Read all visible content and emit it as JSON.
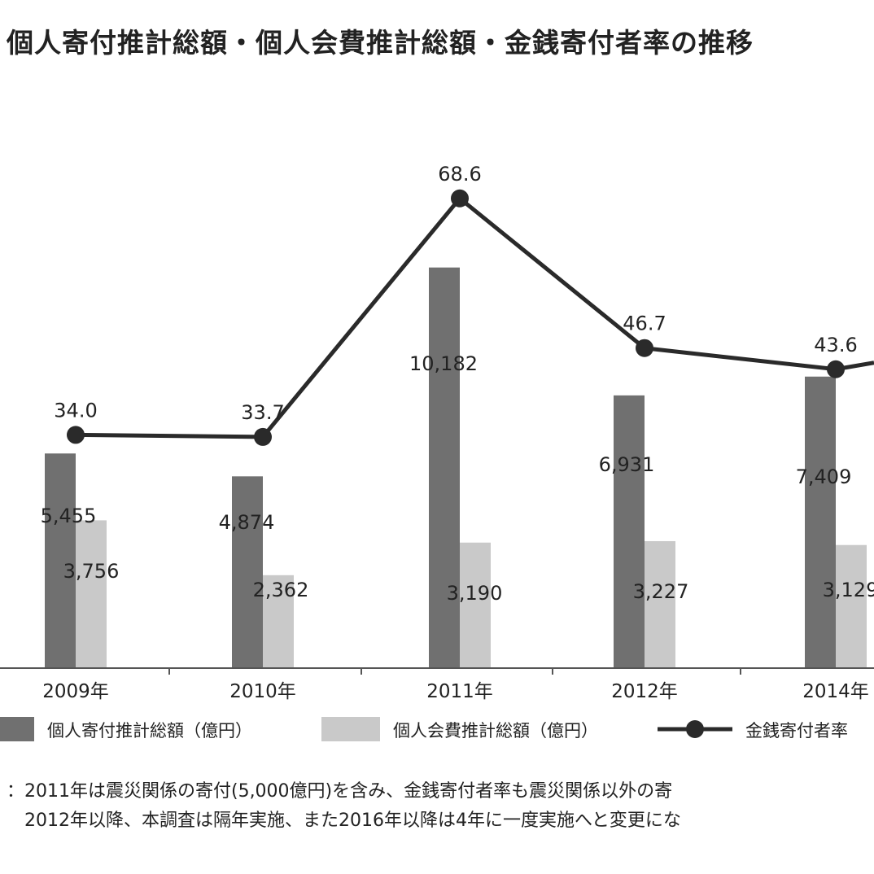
{
  "chart_data": {
    "type": "bar",
    "title": "個人寄付推計総額・個人会費推計総額・金銭寄付者率の推移",
    "categories": [
      "2009年",
      "2010年",
      "2011年",
      "2012年",
      "2014年"
    ],
    "series": [
      {
        "name": "個人寄付推計総額（億円）",
        "kind": "bar",
        "color": "#707070",
        "values": [
          5455,
          4874,
          10182,
          6931,
          7409
        ],
        "labels": [
          "5,455",
          "4,874",
          "10,182",
          "6,931",
          "7,409"
        ]
      },
      {
        "name": "個人会費推計総額（億円）",
        "kind": "bar",
        "color": "#c9c9c9",
        "values": [
          3756,
          2362,
          3190,
          3227,
          3129
        ],
        "labels": [
          "3,756",
          "2,362",
          "3,190",
          "3,227",
          "3,129"
        ]
      },
      {
        "name": "金銭寄付者率",
        "kind": "line",
        "color": "#2a2a2a",
        "values": [
          34.0,
          33.7,
          68.6,
          46.7,
          43.6
        ],
        "labels": [
          "34.0",
          "33.7",
          "68.6",
          "46.7",
          "43.6"
        ]
      }
    ],
    "legend": [
      "個人寄付推計総額（億円）",
      "個人会費推計総額（億円）",
      "金銭寄付者率"
    ],
    "legend_position": "bottom",
    "grid": false
  },
  "notes": [
    "：2011年は震災関係の寄付(5,000億円)を含み、金銭寄付者率も震災関係以外の寄",
    "　2012年以降、本調査は隔年実施、また2016年以降は4年に一度実施へと変更にな"
  ]
}
